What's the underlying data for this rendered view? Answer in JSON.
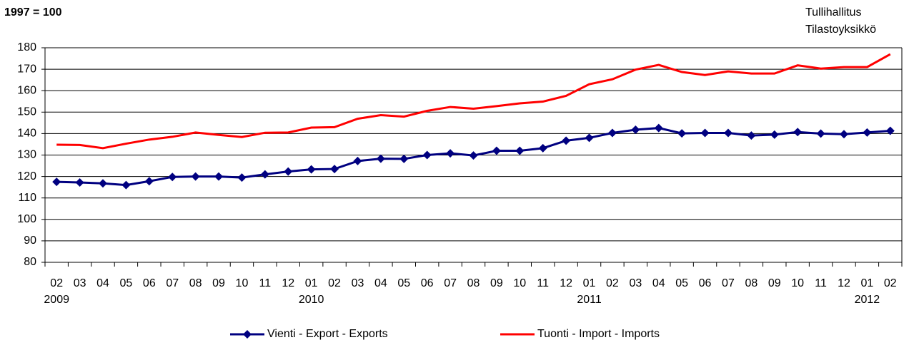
{
  "chart_data": {
    "type": "line",
    "title": "1997 = 100",
    "source": [
      "Tullihallitus",
      "Tilastoyksikkö"
    ],
    "categories": [
      "02",
      "03",
      "04",
      "05",
      "06",
      "07",
      "08",
      "09",
      "10",
      "11",
      "12",
      "01",
      "02",
      "03",
      "04",
      "05",
      "06",
      "07",
      "08",
      "09",
      "10",
      "11",
      "12",
      "01",
      "02",
      "03",
      "04",
      "05",
      "06",
      "07",
      "08",
      "09",
      "10",
      "11",
      "12",
      "01",
      "02"
    ],
    "category_years": [
      "2009",
      null,
      null,
      null,
      null,
      null,
      null,
      null,
      null,
      null,
      null,
      "2010",
      null,
      null,
      null,
      null,
      null,
      null,
      null,
      null,
      null,
      null,
      null,
      "2011",
      null,
      null,
      null,
      null,
      null,
      null,
      null,
      null,
      null,
      null,
      null,
      "2012",
      null
    ],
    "series": [
      {
        "name": "Vienti - Export - Exports",
        "color": "#000080",
        "marker": "diamond",
        "values": [
          117.5,
          117.2,
          116.8,
          116,
          117.8,
          119.8,
          120,
          120,
          119.5,
          121,
          122.3,
          123.3,
          123.5,
          127.2,
          128.3,
          128.2,
          130,
          130.8,
          129.8,
          132,
          132,
          133.2,
          136.7,
          138,
          140.3,
          141.8,
          142.6,
          140.1,
          140.3,
          140.3,
          139.1,
          139.5,
          140.7,
          140,
          139.7,
          140.5,
          141.3
        ]
      },
      {
        "name": "Tuonti - Import - Imports",
        "color": "#ff0000",
        "marker": null,
        "values": [
          134.8,
          134.7,
          133.2,
          135.3,
          137.2,
          138.5,
          140.5,
          139.4,
          138.4,
          140.4,
          140.5,
          142.8,
          143,
          146.9,
          148.6,
          147.9,
          150.6,
          152.4,
          151.6,
          152.8,
          154.1,
          154.9,
          157.6,
          163,
          165.3,
          169.8,
          172,
          168.7,
          167.3,
          169,
          168,
          168,
          171.8,
          170.3,
          171,
          171,
          177
        ]
      }
    ],
    "ylim": [
      80,
      180
    ],
    "yticks": [
      80,
      90,
      100,
      110,
      120,
      130,
      140,
      150,
      160,
      170,
      180
    ],
    "grid": true,
    "legend": "bottom"
  }
}
